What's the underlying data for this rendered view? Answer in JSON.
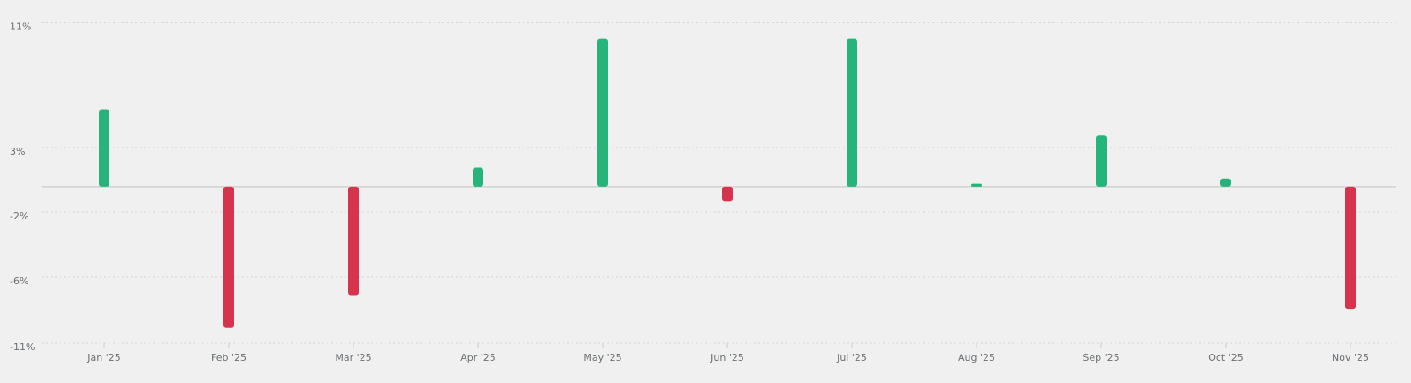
{
  "chart_data": {
    "type": "bar",
    "title": "",
    "xlabel": "",
    "ylabel": "",
    "categories": [
      "Jan '25",
      "Feb '25",
      "Mar '25",
      "Apr '25",
      "May '25",
      "Jun '25",
      "Jul '25",
      "Aug '25",
      "Sep '25",
      "Oct '25",
      "Nov '25"
    ],
    "values": [
      5.25,
      -9.65,
      -7.45,
      1.3,
      10.1,
      -1.0,
      10.1,
      0.2,
      3.5,
      0.55,
      -8.4
    ],
    "unit": "%",
    "y_ticks": [
      {
        "label": "11%",
        "value": 11.2
      },
      {
        "label": "3%",
        "value": 2.67
      },
      {
        "label": "-2%",
        "value": -1.76
      },
      {
        "label": "-6%",
        "value": -6.2
      },
      {
        "label": "-11%",
        "value": -10.7
      }
    ],
    "ylim": [
      -10.7,
      11.2
    ],
    "grid": true,
    "legend": "none",
    "colors": {
      "positive": "#26b47a",
      "negative": "#d6334c",
      "grid": "#d4d6d6",
      "zero_line": "#cfd1d1",
      "background": "#eff0ef"
    }
  }
}
